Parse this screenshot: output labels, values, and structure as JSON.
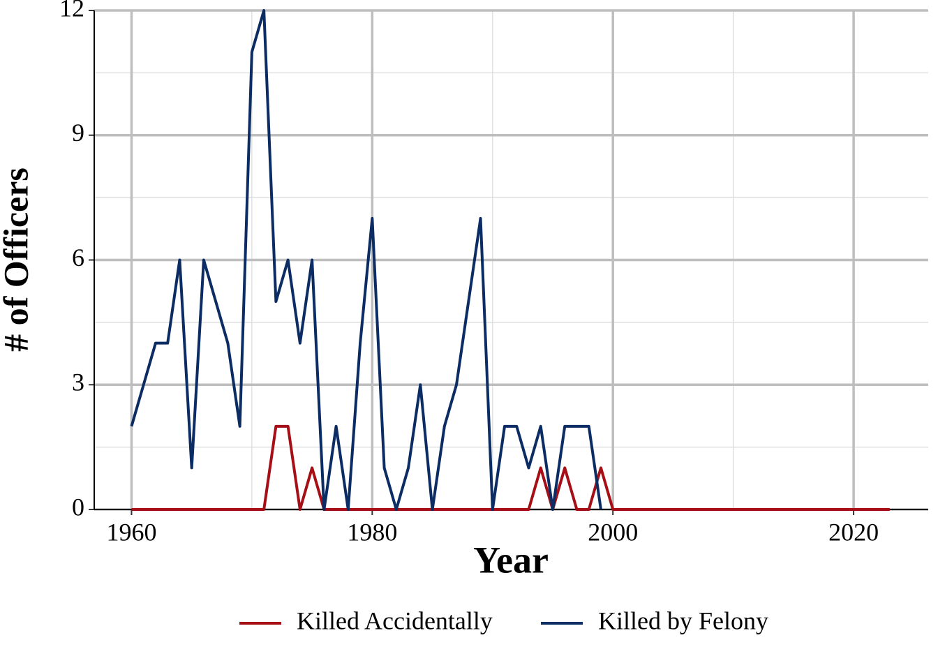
{
  "chart_data": {
    "type": "line",
    "xlabel": "Year",
    "ylabel": "# of Officers",
    "x": [
      1960,
      1961,
      1962,
      1963,
      1964,
      1965,
      1966,
      1967,
      1968,
      1969,
      1970,
      1971,
      1972,
      1973,
      1974,
      1975,
      1976,
      1977,
      1978,
      1979,
      1980,
      1981,
      1982,
      1983,
      1984,
      1985,
      1986,
      1987,
      1988,
      1989,
      1990,
      1991,
      1992,
      1993,
      1994,
      1995,
      1996,
      1997,
      1998,
      1999,
      2000,
      2001,
      2002,
      2003,
      2004,
      2005,
      2006,
      2007,
      2008,
      2009,
      2010,
      2011,
      2012,
      2013,
      2014,
      2015,
      2016,
      2017,
      2018,
      2019,
      2020,
      2021,
      2022,
      2023
    ],
    "series": [
      {
        "name": "Killed Accidentally",
        "color": "#a50f15",
        "values": [
          0,
          0,
          0,
          0,
          0,
          0,
          0,
          0,
          0,
          0,
          0,
          0,
          2,
          2,
          0,
          1,
          0,
          0,
          0,
          0,
          0,
          0,
          0,
          0,
          0,
          0,
          0,
          0,
          0,
          0,
          0,
          0,
          0,
          0,
          1,
          0,
          1,
          0,
          0,
          1,
          0,
          0,
          0,
          0,
          0,
          0,
          0,
          0,
          0,
          0,
          0,
          0,
          0,
          0,
          0,
          0,
          0,
          0,
          0,
          0,
          0,
          0,
          0,
          0
        ]
      },
      {
        "name": "Killed by Felony",
        "color": "#0c2c64",
        "values": [
          2,
          3,
          4,
          4,
          6,
          1,
          6,
          5,
          4,
          2,
          11,
          12,
          5,
          6,
          4,
          6,
          0,
          2,
          0,
          4,
          7,
          1,
          0,
          1,
          3,
          0,
          2,
          3,
          5,
          7,
          0,
          2,
          2,
          1,
          2,
          0,
          2,
          2,
          2,
          0,
          null,
          null,
          null,
          null,
          null,
          null,
          null,
          null,
          null,
          null,
          null,
          null,
          null,
          null,
          null,
          null,
          null,
          null,
          null,
          null,
          null,
          null,
          null,
          null
        ]
      }
    ],
    "xlim": [
      1956.9,
      2026.2
    ],
    "xticks": [
      1960,
      1980,
      2000,
      2020
    ],
    "xminor": [
      1970,
      1990,
      2010
    ],
    "ylim": [
      0,
      12
    ],
    "yticks": [
      0,
      3,
      6,
      9,
      12
    ],
    "yminor": [
      1.5,
      4.5,
      7.5,
      10.5
    ],
    "grid": true,
    "legend": "bottom"
  }
}
